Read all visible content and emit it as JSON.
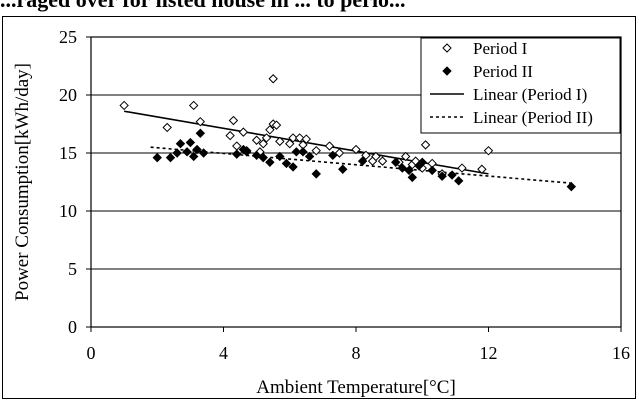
{
  "chart_data": {
    "type": "scatter",
    "title": "...raged over for listed house in ... to perio...",
    "xlabel": "Ambient Temperature[°C]",
    "ylabel": "Power Consumption[kWh/day]",
    "xlim": [
      0,
      16
    ],
    "ylim": [
      0,
      25
    ],
    "xticks": [
      "0",
      "4",
      "8",
      "12",
      "16"
    ],
    "yticks": [
      "0",
      "5",
      "10",
      "15",
      "20",
      "25"
    ],
    "grid": "horizontal",
    "legend_position": "top-right",
    "legend": [
      "Period I",
      "Period II",
      "Linear (Period I)",
      "Linear (Period II)"
    ],
    "series": [
      {
        "name": "Period I",
        "marker": "open-diamond",
        "points": [
          [
            1.0,
            19.1
          ],
          [
            2.3,
            17.2
          ],
          [
            3.1,
            19.1
          ],
          [
            3.3,
            17.7
          ],
          [
            4.2,
            16.5
          ],
          [
            4.3,
            17.8
          ],
          [
            4.4,
            15.6
          ],
          [
            4.6,
            16.8
          ],
          [
            4.7,
            15.2
          ],
          [
            5.0,
            16.1
          ],
          [
            5.1,
            15.1
          ],
          [
            5.2,
            15.8
          ],
          [
            5.3,
            16.3
          ],
          [
            5.4,
            17.0
          ],
          [
            5.5,
            17.5
          ],
          [
            5.5,
            21.4
          ],
          [
            5.6,
            17.4
          ],
          [
            5.7,
            16.0
          ],
          [
            6.0,
            15.8
          ],
          [
            6.1,
            16.3
          ],
          [
            6.3,
            16.3
          ],
          [
            6.4,
            15.7
          ],
          [
            6.5,
            16.2
          ],
          [
            6.8,
            15.2
          ],
          [
            7.2,
            15.6
          ],
          [
            7.5,
            15.0
          ],
          [
            8.0,
            15.3
          ],
          [
            8.3,
            14.8
          ],
          [
            8.5,
            14.3
          ],
          [
            8.6,
            14.7
          ],
          [
            8.8,
            14.3
          ],
          [
            9.3,
            14.2
          ],
          [
            9.5,
            14.7
          ],
          [
            9.7,
            14.0
          ],
          [
            9.8,
            14.3
          ],
          [
            10.0,
            13.7
          ],
          [
            10.1,
            15.7
          ],
          [
            10.3,
            14.1
          ],
          [
            10.6,
            13.2
          ],
          [
            11.2,
            13.7
          ],
          [
            11.8,
            13.6
          ],
          [
            12.0,
            15.2
          ]
        ]
      },
      {
        "name": "Period II",
        "marker": "filled-diamond",
        "points": [
          [
            2.0,
            14.6
          ],
          [
            2.4,
            14.6
          ],
          [
            2.6,
            15.0
          ],
          [
            2.7,
            15.8
          ],
          [
            2.9,
            15.1
          ],
          [
            3.0,
            15.9
          ],
          [
            3.1,
            14.7
          ],
          [
            3.2,
            15.3
          ],
          [
            3.3,
            16.7
          ],
          [
            3.4,
            15.0
          ],
          [
            4.4,
            14.9
          ],
          [
            4.6,
            15.3
          ],
          [
            4.7,
            15.1
          ],
          [
            5.0,
            14.8
          ],
          [
            5.2,
            14.6
          ],
          [
            5.4,
            14.2
          ],
          [
            5.7,
            14.7
          ],
          [
            5.9,
            14.1
          ],
          [
            6.1,
            13.8
          ],
          [
            6.2,
            15.1
          ],
          [
            6.4,
            15.1
          ],
          [
            6.6,
            14.7
          ],
          [
            6.8,
            13.2
          ],
          [
            7.3,
            14.8
          ],
          [
            7.6,
            13.6
          ],
          [
            8.2,
            14.3
          ],
          [
            9.2,
            14.2
          ],
          [
            9.4,
            13.7
          ],
          [
            9.6,
            13.5
          ],
          [
            9.7,
            12.9
          ],
          [
            9.9,
            13.9
          ],
          [
            10.0,
            14.2
          ],
          [
            10.3,
            13.5
          ],
          [
            10.6,
            13.0
          ],
          [
            10.9,
            13.1
          ],
          [
            11.1,
            12.6
          ],
          [
            14.5,
            12.1
          ]
        ]
      }
    ],
    "trendlines": [
      {
        "name": "Linear (Period I)",
        "style": "solid",
        "x": [
          1.0,
          12.0
        ],
        "y": [
          18.6,
          13.2
        ]
      },
      {
        "name": "Linear (Period II)",
        "style": "dashed",
        "x": [
          1.8,
          14.5
        ],
        "y": [
          15.5,
          12.4
        ]
      }
    ]
  }
}
